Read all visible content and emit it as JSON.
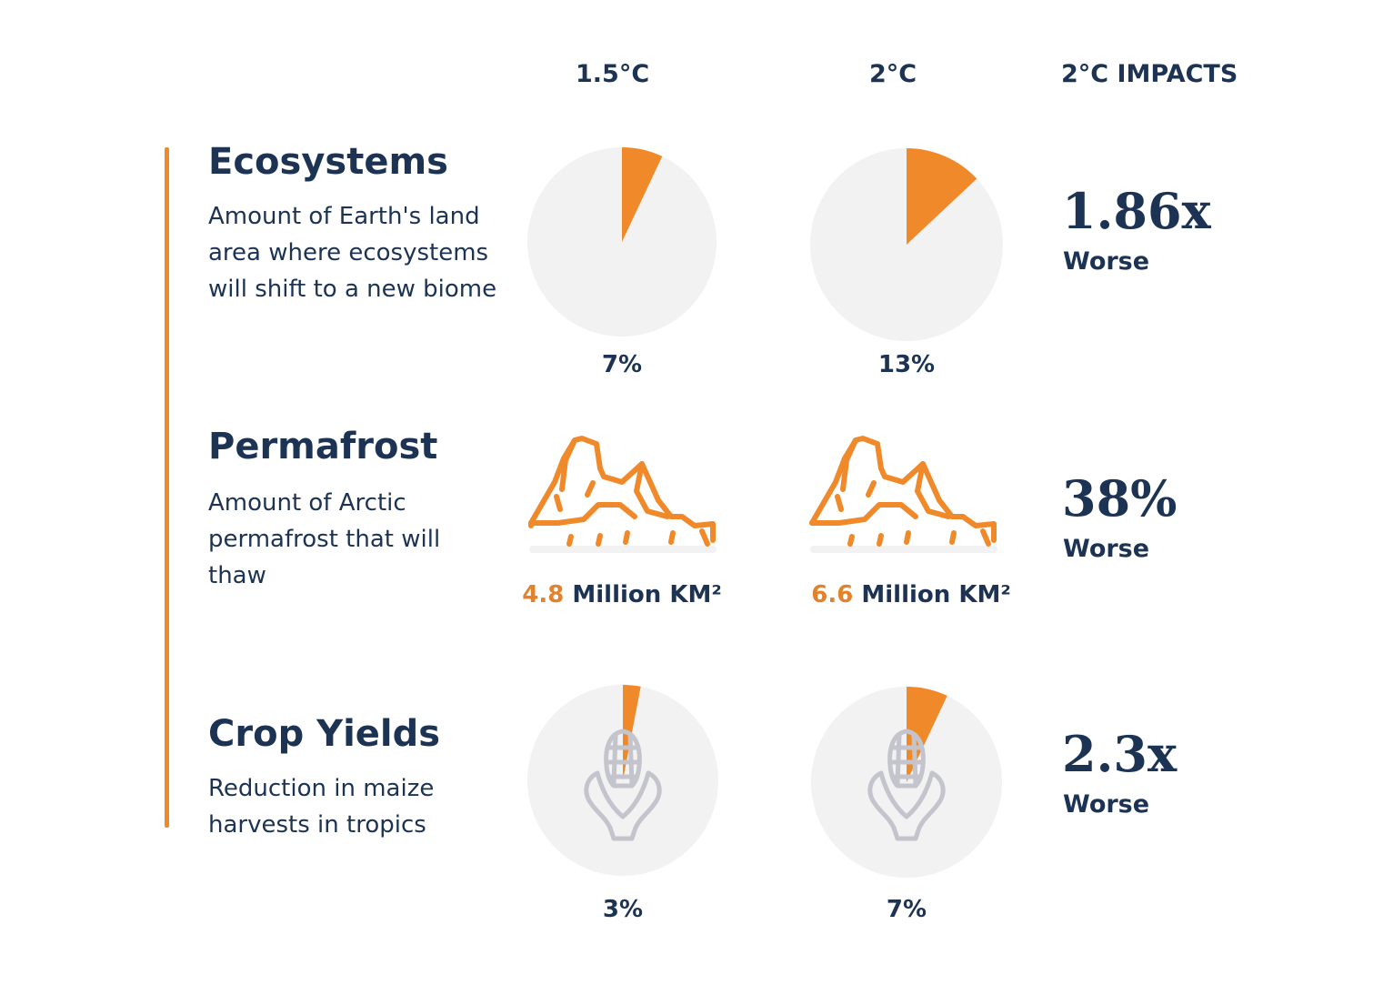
{
  "columns": {
    "scenario_a": "1.5°C",
    "scenario_b": "2°C",
    "impacts": "2°C IMPACTS"
  },
  "colors": {
    "accent": "#f0892a",
    "pie_bg": "#f2f2f2",
    "text": "#1c3354",
    "icon_gray": "#c4c4cc"
  },
  "chart_data": [
    {
      "type": "pie",
      "row": "Ecosystems",
      "categories": [
        "1.5°C",
        "2°C"
      ],
      "values": [
        7,
        13
      ],
      "unit": "%",
      "labels": [
        "7%",
        "13%"
      ]
    },
    {
      "type": "bar",
      "row": "Permafrost",
      "categories": [
        "1.5°C",
        "2°C"
      ],
      "values": [
        4.8,
        6.6
      ],
      "unit": "Million KM²"
    },
    {
      "type": "pie",
      "row": "Crop Yields",
      "categories": [
        "1.5°C",
        "2°C"
      ],
      "values": [
        3,
        7
      ],
      "unit": "%",
      "labels": [
        "3%",
        "7%"
      ]
    }
  ],
  "rows": {
    "ecosystems": {
      "title": "Ecosystems",
      "description": "Amount of Earth's land area where ecosystems will shift to a new biome",
      "label_a": "7%",
      "label_b": "13%",
      "impact": "1.86x",
      "impact_word": "Worse"
    },
    "permafrost": {
      "title": "Permafrost",
      "description": "Amount of Arctic permafrost that will thaw",
      "value_a": "4.8",
      "value_b": "6.6",
      "unit": "Million KM²",
      "impact": "38%",
      "impact_word": "Worse"
    },
    "crops": {
      "title": "Crop Yields",
      "description": "Reduction in maize harvests in tropics",
      "label_a": "3%",
      "label_b": "7%",
      "impact": "2.3x",
      "impact_word": "Worse"
    }
  },
  "icons": {
    "permafrost": "iceberg-icon",
    "crops": "maize-icon"
  }
}
